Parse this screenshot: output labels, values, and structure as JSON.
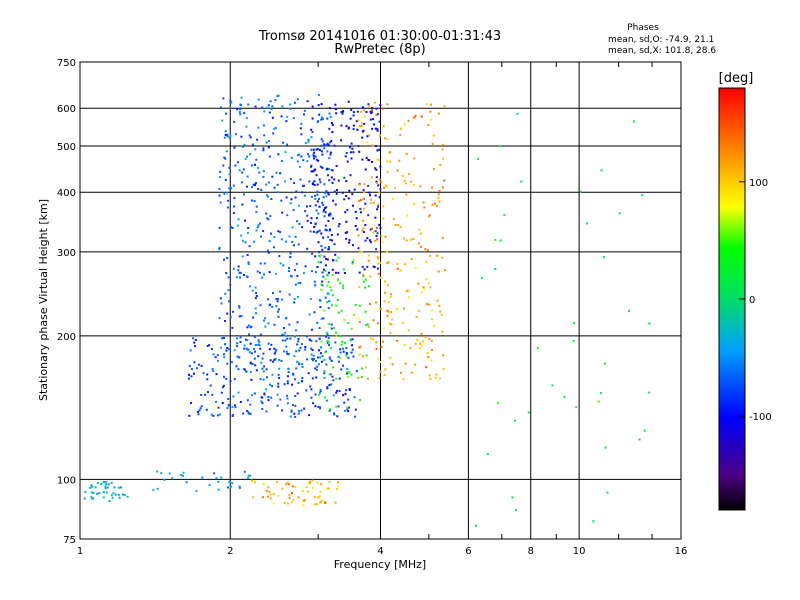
{
  "title": {
    "line1": "Tromsø 20141016 01:30:00-01:31:43",
    "line2": "RwPretec (8p)"
  },
  "phase_box": {
    "heading": "Phases",
    "line_o": "mean, sd,O: -74.9, 21.1",
    "line_x": "mean, sd,X: 101.8, 28.6"
  },
  "colorbar": {
    "label": "[deg]",
    "ticks": [
      {
        "value": 100,
        "label": "100"
      },
      {
        "value": 0,
        "label": "0"
      },
      {
        "value": -100,
        "label": "-100"
      }
    ],
    "range": [
      -180,
      180
    ]
  },
  "chart_data": {
    "type": "scatter",
    "title": "Tromsø 20141016 01:30:00-01:31:43",
    "subtitle": "RwPretec (8p)",
    "xlabel": "Frequency [MHz]",
    "ylabel": "Stationary phase Virtual Height [km]",
    "x_scale": "log",
    "y_scale": "log",
    "xlim": [
      1,
      16
    ],
    "ylim": [
      75,
      750
    ],
    "xticks": [
      1,
      2,
      4,
      6,
      8,
      10,
      16
    ],
    "xtick_labels": [
      "1",
      "2",
      "4",
      "6",
      "8",
      "10",
      "16"
    ],
    "yticks": [
      75,
      100,
      200,
      300,
      400,
      500,
      600,
      750
    ],
    "ytick_labels": [
      "75",
      "100",
      "200",
      "300",
      "400",
      "500",
      "600",
      "750"
    ],
    "grid": true,
    "color_variable": "phase [deg]",
    "clusters": [
      {
        "region": "low band O",
        "f_range": [
          1.0,
          1.25
        ],
        "h_range": [
          90,
          99
        ],
        "phase_mean": -30,
        "count": 40
      },
      {
        "region": "low sporadic",
        "f_range": [
          1.4,
          2.2
        ],
        "h_range": [
          94,
          104
        ],
        "phase_mean": -40,
        "count": 30
      },
      {
        "region": "low sporadic X",
        "f_range": [
          2.2,
          3.3
        ],
        "h_range": [
          88,
          100
        ],
        "phase_mean": 110,
        "count": 60
      },
      {
        "region": "F1 lower O",
        "f_range": [
          1.65,
          3.6
        ],
        "h_range": [
          135,
          200
        ],
        "phase_mean": -75,
        "count": 260
      },
      {
        "region": "F O trace",
        "f_range": [
          1.9,
          3.2
        ],
        "h_range": [
          160,
          640
        ],
        "phase_mean": -65,
        "count": 520
      },
      {
        "region": "F O cusp",
        "f_range": [
          2.9,
          4.0
        ],
        "h_range": [
          270,
          620
        ],
        "phase_mean": -100,
        "count": 240
      },
      {
        "region": "F X trace",
        "f_range": [
          3.6,
          5.4
        ],
        "h_range": [
          160,
          620
        ],
        "phase_mean": 115,
        "count": 260
      },
      {
        "region": "mid X",
        "f_range": [
          3.0,
          3.8
        ],
        "h_range": [
          140,
          300
        ],
        "phase_mean": 40,
        "count": 80
      },
      {
        "region": "scattered high-f",
        "f_range": [
          6.0,
          14.0
        ],
        "h_range": [
          75,
          630
        ],
        "phase_mean": 20,
        "count": 40
      }
    ]
  }
}
